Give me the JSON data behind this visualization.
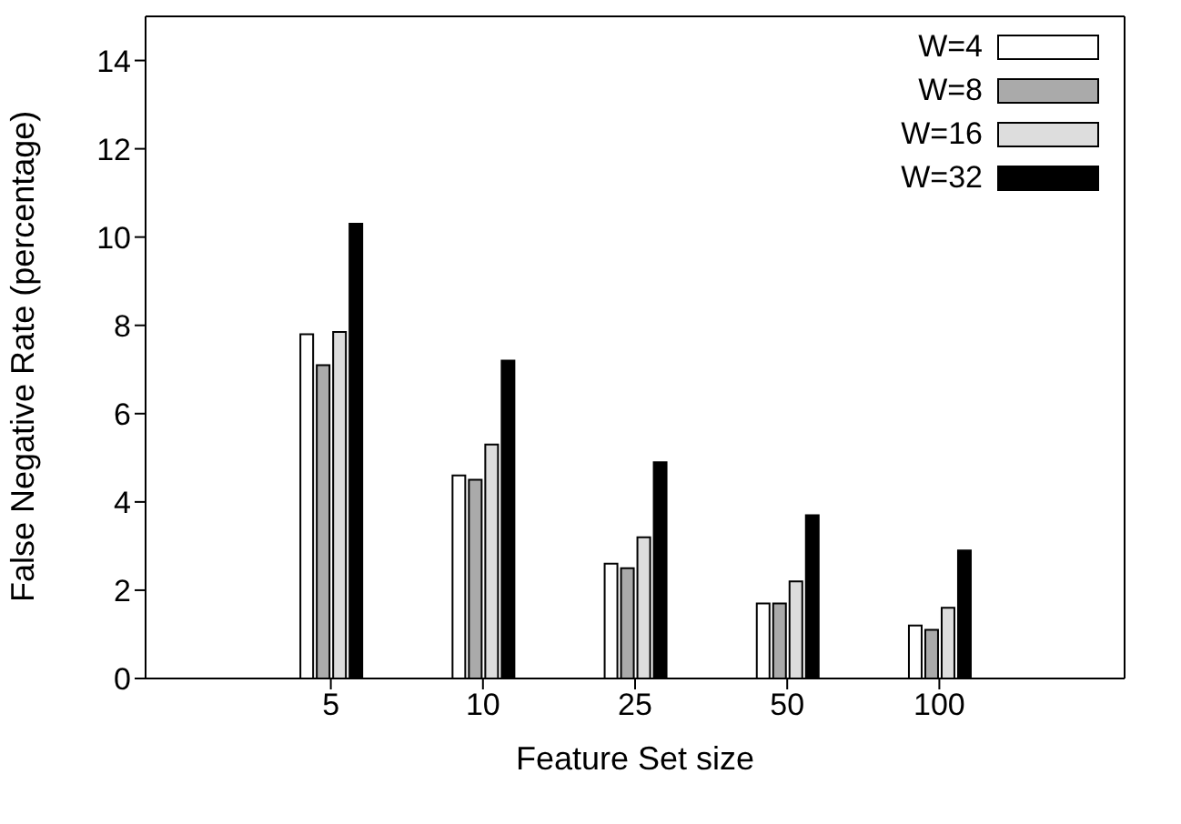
{
  "chart_data": {
    "type": "bar",
    "xlabel": "Feature Set size",
    "ylabel": "False Negative Rate (percentage)",
    "categories": [
      "5",
      "10",
      "25",
      "50",
      "100"
    ],
    "series": [
      {
        "name": "W=4",
        "color": "#ffffff",
        "values": [
          7.8,
          4.6,
          2.6,
          1.7,
          1.2
        ]
      },
      {
        "name": "W=8",
        "color": "#aaaaaa",
        "values": [
          7.1,
          4.5,
          2.5,
          1.7,
          1.1
        ]
      },
      {
        "name": "W=16",
        "color": "#dddddd",
        "values": [
          7.85,
          5.3,
          3.2,
          2.2,
          1.6
        ]
      },
      {
        "name": "W=32",
        "color": "#000000",
        "values": [
          10.3,
          7.2,
          4.9,
          3.7,
          2.9
        ]
      }
    ],
    "ylim": [
      0,
      15
    ],
    "yticks": [
      0,
      2,
      4,
      6,
      8,
      10,
      12,
      14
    ],
    "legend": "top right"
  }
}
